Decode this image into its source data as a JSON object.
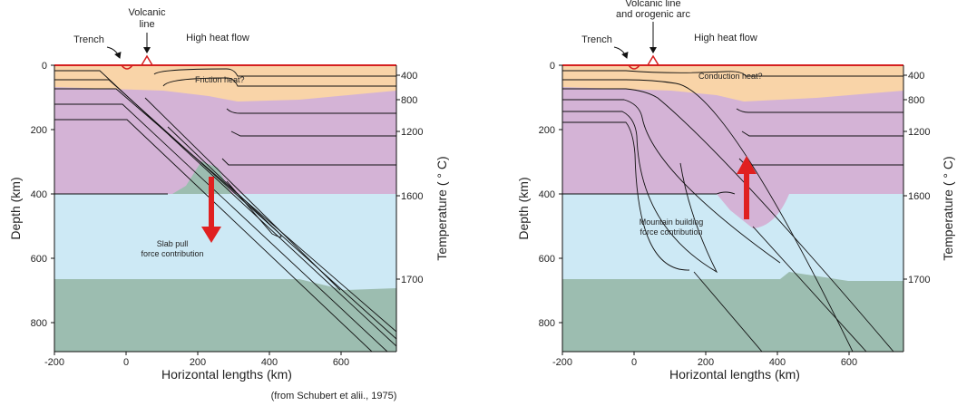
{
  "panels": [
    {
      "trench": "Trench",
      "volcanic": [
        "Volcanic",
        "line"
      ],
      "heat_flow": "High heat flow",
      "heat_note": "Friction heat?",
      "force_note": [
        "Slab pull",
        "force contribution"
      ],
      "x_label": "Horizontal lengths (km)",
      "y_label": "Depth (km)",
      "y2_label": "Temperature ( ° C)",
      "x_ticks": [
        -200,
        0,
        200,
        400,
        600
      ],
      "depth_ticks": [
        0,
        200,
        400,
        600,
        800
      ],
      "temperature_ticks": [
        400,
        800,
        1200,
        1600,
        1700
      ]
    },
    {
      "trench": "Trench",
      "volcanic": [
        "Volcanic line",
        "and orogenic arc"
      ],
      "heat_flow": "High heat flow",
      "heat_note": "Conduction heat?",
      "force_note": [
        "Mountain building",
        "force contribution"
      ],
      "x_label": "Horizontal lengths (km)",
      "y_label": "Depth (km)",
      "y2_label": "Temperature ( ° C)",
      "x_ticks": [
        -200,
        0,
        200,
        400,
        600
      ],
      "depth_ticks": [
        0,
        200,
        400,
        600,
        800
      ],
      "temperature_ticks": [
        400,
        800,
        1200,
        1600,
        1700
      ]
    }
  ],
  "source": "(from Schubert et alii., 1975)"
}
